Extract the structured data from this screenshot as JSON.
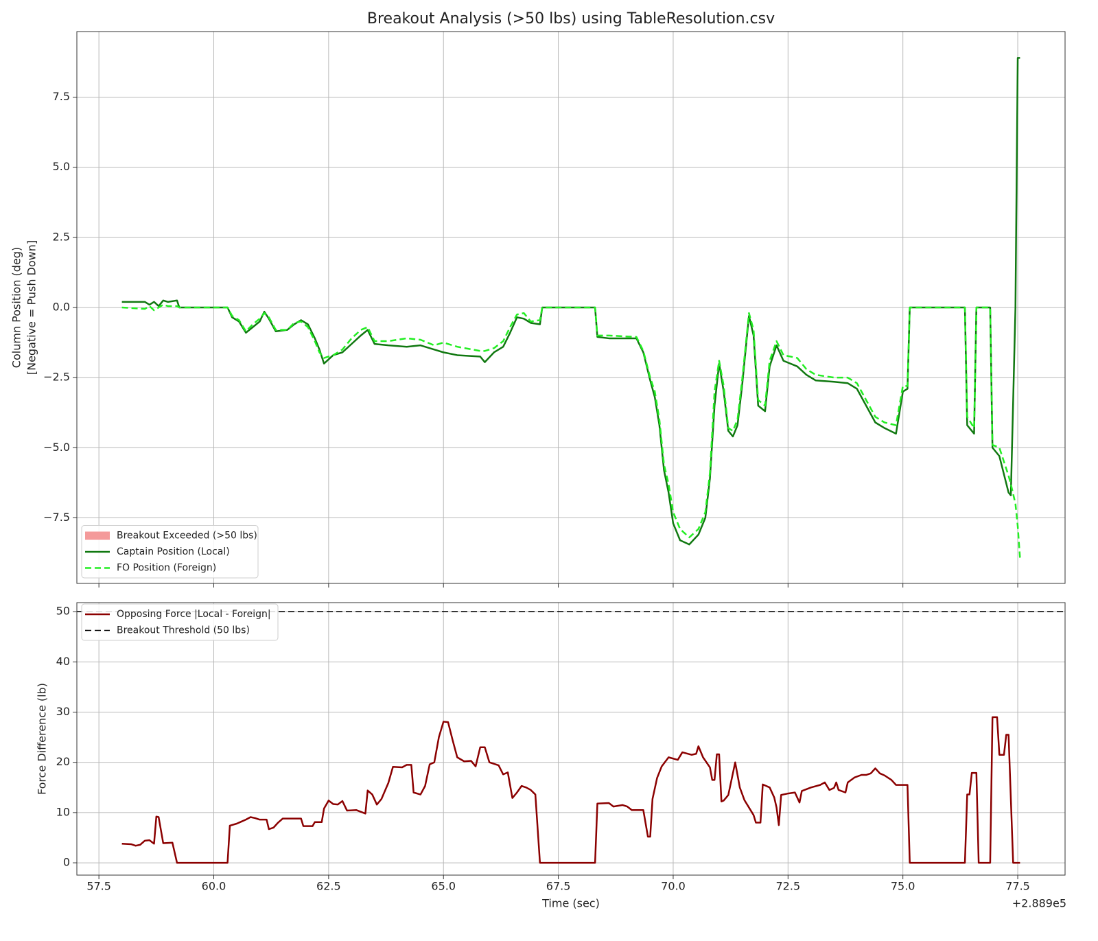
{
  "chart_data": [
    {
      "type": "line",
      "title": "Breakout Analysis (>50 lbs) using TableResolution.csv",
      "ylabel": [
        "Column Position (deg)",
        "[Negative = Push Down]"
      ],
      "xlim": [
        57.02,
        78.53
      ],
      "ylim": [
        -9.84,
        9.84
      ],
      "xticks": [
        57.5,
        60,
        62.5,
        65,
        67.5,
        70,
        72.5,
        75,
        77.5
      ],
      "show_xticklabels": false,
      "yticks": [
        {
          "value": -7.5,
          "label": "−7.5"
        },
        {
          "value": -5,
          "label": "−5.0"
        },
        {
          "value": -2.5,
          "label": "−2.5"
        },
        {
          "value": 0,
          "label": "0.0"
        },
        2.5,
        {
          "value": 5,
          "label": "5.0"
        },
        7.5
      ],
      "grid": true,
      "legend": "lower left",
      "breakout_fill": {
        "name": "Breakout Exceeded (>50 lbs)",
        "color": "#f49a9a",
        "regions": []
      },
      "x": [
        58.0,
        58.5,
        58.6,
        58.7,
        58.8,
        58.9,
        59.0,
        59.2,
        59.25,
        60.3,
        60.4,
        60.55,
        60.7,
        60.85,
        61.0,
        61.1,
        61.2,
        61.35,
        61.6,
        61.75,
        61.9,
        62.05,
        62.2,
        62.3,
        62.4,
        62.6,
        62.8,
        63.0,
        63.2,
        63.35,
        63.5,
        63.8,
        64.2,
        64.5,
        64.8,
        65.0,
        65.3,
        65.8,
        65.9,
        66.1,
        66.3,
        66.45,
        66.6,
        66.75,
        66.9,
        67.1,
        67.15,
        68.3,
        68.35,
        68.6,
        69.2,
        69.35,
        69.5,
        69.6,
        69.7,
        69.8,
        69.9,
        70.0,
        70.15,
        70.35,
        70.55,
        70.7,
        70.8,
        70.9,
        71.0,
        71.1,
        71.2,
        71.3,
        71.4,
        71.5,
        71.65,
        71.75,
        71.85,
        72.0,
        72.1,
        72.25,
        72.4,
        72.7,
        72.9,
        73.1,
        73.5,
        73.8,
        74.0,
        74.2,
        74.4,
        74.6,
        74.85,
        75.0,
        75.1,
        75.15,
        76.35,
        76.4,
        76.55,
        76.6,
        76.9,
        76.95,
        77.1,
        77.3,
        77.35,
        77.45,
        77.5,
        77.55
      ],
      "series": [
        {
          "name": "Captain Position (Local)",
          "color": "#107810",
          "linestyle": "solid",
          "values": [
            0.2,
            0.2,
            0.1,
            0.2,
            0.05,
            0.25,
            0.2,
            0.25,
            0.0,
            0.0,
            -0.35,
            -0.5,
            -0.9,
            -0.7,
            -0.5,
            -0.15,
            -0.4,
            -0.85,
            -0.8,
            -0.6,
            -0.45,
            -0.6,
            -1.1,
            -1.5,
            -2.0,
            -1.7,
            -1.6,
            -1.3,
            -1.0,
            -0.8,
            -1.3,
            -1.35,
            -1.4,
            -1.35,
            -1.5,
            -1.6,
            -1.7,
            -1.75,
            -1.95,
            -1.6,
            -1.4,
            -0.9,
            -0.35,
            -0.4,
            -0.55,
            -0.6,
            0.0,
            0.0,
            -1.05,
            -1.1,
            -1.1,
            -1.6,
            -2.6,
            -3.2,
            -4.2,
            -5.8,
            -6.6,
            -7.7,
            -8.3,
            -8.45,
            -8.1,
            -7.5,
            -6.1,
            -3.5,
            -2.0,
            -3.0,
            -4.4,
            -4.6,
            -4.2,
            -2.8,
            -0.3,
            -1.0,
            -3.5,
            -3.7,
            -2.1,
            -1.35,
            -1.9,
            -2.1,
            -2.4,
            -2.6,
            -2.65,
            -2.7,
            -2.9,
            -3.5,
            -4.1,
            -4.3,
            -4.5,
            -3.0,
            -2.9,
            0.0,
            0.0,
            -4.2,
            -4.5,
            0.0,
            0.0,
            -5.0,
            -5.3,
            -6.6,
            -6.7,
            0.0,
            8.9,
            8.9
          ]
        },
        {
          "name": "FO Position (Foreign)",
          "color": "#22ee22",
          "linestyle": "dashed",
          "values": [
            0.0,
            -0.05,
            0.05,
            -0.1,
            0.0,
            0.1,
            0.05,
            0.05,
            0.0,
            0.0,
            -0.3,
            -0.45,
            -0.85,
            -0.6,
            -0.4,
            -0.2,
            -0.35,
            -0.8,
            -0.8,
            -0.55,
            -0.5,
            -0.7,
            -1.2,
            -1.6,
            -1.8,
            -1.7,
            -1.5,
            -1.1,
            -0.8,
            -0.7,
            -1.2,
            -1.2,
            -1.1,
            -1.15,
            -1.35,
            -1.25,
            -1.4,
            -1.55,
            -1.55,
            -1.45,
            -1.2,
            -0.7,
            -0.25,
            -0.2,
            -0.5,
            -0.45,
            0.0,
            0.0,
            -1.0,
            -1.0,
            -1.05,
            -1.55,
            -2.5,
            -3.0,
            -4.0,
            -5.6,
            -6.3,
            -7.3,
            -7.9,
            -8.2,
            -7.9,
            -7.3,
            -5.9,
            -3.0,
            -1.9,
            -2.8,
            -4.3,
            -4.4,
            -4.0,
            -2.6,
            -0.2,
            -0.8,
            -3.3,
            -3.5,
            -1.9,
            -1.2,
            -1.7,
            -1.8,
            -2.2,
            -2.4,
            -2.5,
            -2.5,
            -2.7,
            -3.3,
            -3.9,
            -4.1,
            -4.2,
            -2.8,
            -2.8,
            0.0,
            0.0,
            -3.9,
            -4.3,
            0.0,
            0.0,
            -4.9,
            -5.0,
            -6.0,
            -6.3,
            -7.0,
            -7.8,
            -8.95
          ]
        }
      ]
    },
    {
      "type": "line",
      "xlabel": "Time (sec)",
      "x_offset": "+2.889e5",
      "ylabel": [
        "Force Difference (lb)"
      ],
      "xlim": [
        57.02,
        78.53
      ],
      "ylim": [
        -2.45,
        51.8
      ],
      "xticks": [
        57.5,
        {
          "value": 60,
          "label": "60.0"
        },
        62.5,
        {
          "value": 65,
          "label": "65.0"
        },
        67.5,
        {
          "value": 70,
          "label": "70.0"
        },
        72.5,
        {
          "value": 75,
          "label": "75.0"
        },
        77.5
      ],
      "show_xticklabels": true,
      "yticks": [
        0,
        10,
        20,
        30,
        40,
        50
      ],
      "grid": true,
      "legend": "upper left",
      "x": [
        58.0,
        58.2,
        58.3,
        58.4,
        58.5,
        58.6,
        58.7,
        58.75,
        58.8,
        58.9,
        59.1,
        59.2,
        60.3,
        60.35,
        60.5,
        60.6,
        60.7,
        60.8,
        60.9,
        61.0,
        61.15,
        61.2,
        61.3,
        61.4,
        61.5,
        61.6,
        61.9,
        61.95,
        62.15,
        62.2,
        62.35,
        62.4,
        62.5,
        62.6,
        62.7,
        62.8,
        62.9,
        63.1,
        63.3,
        63.35,
        63.45,
        63.55,
        63.65,
        63.8,
        63.9,
        64.1,
        64.2,
        64.3,
        64.35,
        64.5,
        64.6,
        64.7,
        64.8,
        64.9,
        65.0,
        65.1,
        65.2,
        65.3,
        65.45,
        65.6,
        65.7,
        65.8,
        65.9,
        66.0,
        66.2,
        66.3,
        66.4,
        66.5,
        66.6,
        66.7,
        66.8,
        66.9,
        67.0,
        67.1,
        68.3,
        68.35,
        68.6,
        68.7,
        68.9,
        69.0,
        69.1,
        69.35,
        69.45,
        69.5,
        69.55,
        69.65,
        69.75,
        69.9,
        70.1,
        70.2,
        70.4,
        70.5,
        70.55,
        70.65,
        70.8,
        70.85,
        70.9,
        70.95,
        71.0,
        71.05,
        71.1,
        71.2,
        71.35,
        71.45,
        71.55,
        71.65,
        71.75,
        71.8,
        71.9,
        71.95,
        72.0,
        72.1,
        72.2,
        72.25,
        72.3,
        72.35,
        72.5,
        72.65,
        72.75,
        72.8,
        73.0,
        73.2,
        73.3,
        73.4,
        73.5,
        73.55,
        73.6,
        73.75,
        73.8,
        73.95,
        74.1,
        74.2,
        74.3,
        74.4,
        74.5,
        74.6,
        74.75,
        74.85,
        75.1,
        75.15,
        76.35,
        76.4,
        76.45,
        76.5,
        76.6,
        76.65,
        76.9,
        76.95,
        77.05,
        77.1,
        77.2,
        77.25,
        77.3,
        77.4,
        77.55
      ],
      "series": [
        {
          "name": "Opposing Force |Local - Foreign|",
          "color": "#8b0000",
          "linestyle": "solid",
          "values": [
            3.8,
            3.7,
            3.4,
            3.6,
            4.4,
            4.5,
            3.8,
            9.2,
            9.1,
            3.9,
            4.0,
            0.0,
            0.0,
            7.4,
            7.8,
            8.2,
            8.6,
            9.1,
            8.9,
            8.6,
            8.6,
            6.7,
            7.0,
            8.0,
            8.8,
            8.8,
            8.8,
            7.3,
            7.3,
            8.1,
            8.1,
            10.8,
            12.4,
            11.7,
            11.6,
            12.3,
            10.4,
            10.5,
            9.8,
            14.4,
            13.6,
            11.6,
            12.7,
            15.9,
            19.1,
            19.0,
            19.5,
            19.5,
            14.0,
            13.6,
            15.3,
            19.6,
            20.0,
            25.0,
            28.1,
            28.0,
            24.4,
            21.0,
            20.2,
            20.3,
            19.2,
            23.0,
            23.0,
            20.0,
            19.4,
            17.6,
            18.0,
            12.9,
            14.0,
            15.3,
            15.0,
            14.5,
            13.6,
            0.0,
            0.0,
            11.8,
            11.9,
            11.2,
            11.5,
            11.2,
            10.5,
            10.5,
            5.2,
            5.2,
            12.7,
            16.9,
            19.2,
            21.0,
            20.5,
            22.0,
            21.5,
            21.7,
            23.2,
            21.0,
            19.0,
            16.5,
            16.5,
            21.6,
            21.6,
            12.2,
            12.4,
            13.5,
            20.0,
            15.0,
            12.5,
            11.0,
            9.5,
            8.0,
            8.0,
            15.6,
            15.4,
            15.0,
            13.0,
            11.0,
            7.5,
            13.5,
            13.8,
            14.0,
            12.0,
            14.3,
            15.0,
            15.5,
            16.0,
            14.5,
            14.9,
            16.0,
            14.5,
            14.0,
            16.0,
            17.0,
            17.5,
            17.5,
            17.8,
            18.8,
            17.8,
            17.4,
            16.5,
            15.5,
            15.5,
            0.0,
            0.0,
            13.6,
            13.6,
            17.9,
            17.9,
            0.0,
            0.0,
            29.0,
            29.0,
            21.5,
            21.5,
            25.5,
            25.5,
            0.0,
            0.0
          ]
        }
      ],
      "threshold": {
        "name": "Breakout Threshold (50 lbs)",
        "value": 50,
        "color": "#000000",
        "linestyle": "dashed"
      }
    }
  ]
}
